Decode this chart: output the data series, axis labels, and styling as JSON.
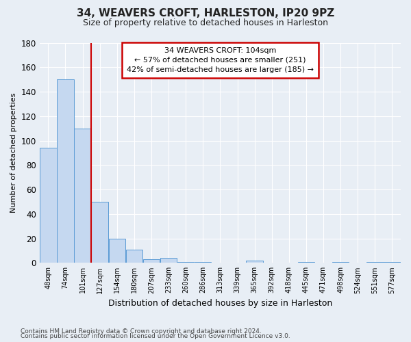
{
  "title": "34, WEAVERS CROFT, HARLESTON, IP20 9PZ",
  "subtitle": "Size of property relative to detached houses in Harleston",
  "xlabel": "Distribution of detached houses by size in Harleston",
  "ylabel": "Number of detached properties",
  "footnote1": "Contains HM Land Registry data © Crown copyright and database right 2024.",
  "footnote2": "Contains public sector information licensed under the Open Government Licence v3.0.",
  "annotation_line1": "34 WEAVERS CROFT: 104sqm",
  "annotation_line2": "← 57% of detached houses are smaller (251)",
  "annotation_line3": "42% of semi-detached houses are larger (185) →",
  "bar_labels": [
    "48sqm",
    "74sqm",
    "101sqm",
    "127sqm",
    "154sqm",
    "180sqm",
    "207sqm",
    "233sqm",
    "260sqm",
    "286sqm",
    "313sqm",
    "339sqm",
    "365sqm",
    "392sqm",
    "418sqm",
    "445sqm",
    "471sqm",
    "498sqm",
    "524sqm",
    "551sqm",
    "577sqm"
  ],
  "bar_values": [
    94,
    150,
    110,
    50,
    20,
    11,
    3,
    4,
    1,
    1,
    0,
    0,
    2,
    0,
    0,
    1,
    0,
    1,
    0,
    1,
    1
  ],
  "bar_color": "#c5d8f0",
  "bar_edge_color": "#5b9bd5",
  "ylim": [
    0,
    180
  ],
  "yticks": [
    0,
    20,
    40,
    60,
    80,
    100,
    120,
    140,
    160,
    180
  ],
  "annotation_box_color": "#ffffff",
  "annotation_box_edge": "#cc0000",
  "red_line_color": "#cc0000",
  "background_color": "#e8eef5",
  "axes_bg_color": "#e8eef5",
  "grid_color": "#ffffff",
  "title_fontsize": 11,
  "subtitle_fontsize": 9,
  "ylabel_fontsize": 8,
  "xlabel_fontsize": 9,
  "annot_fontsize": 8,
  "footnote_fontsize": 6.5
}
